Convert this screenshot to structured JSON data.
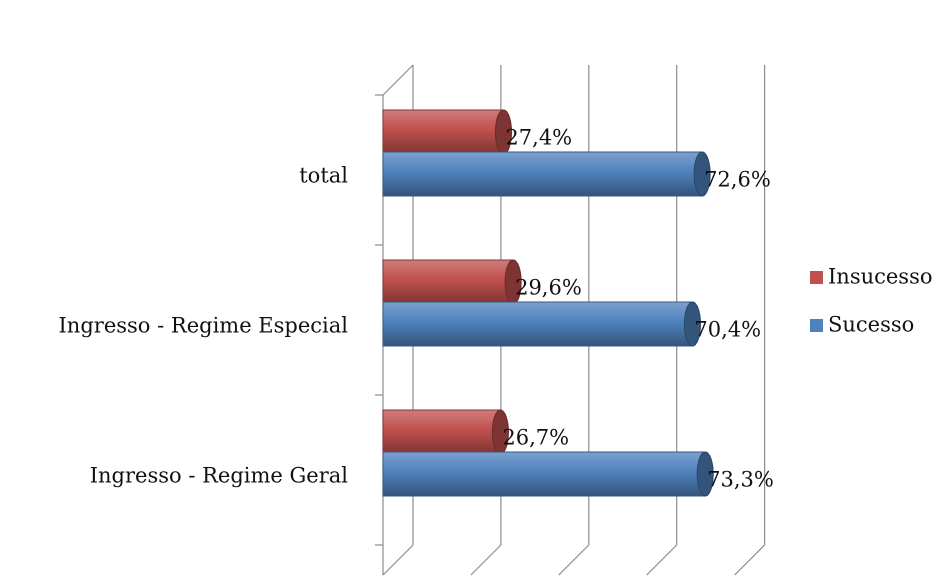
{
  "chart_data": {
    "type": "bar",
    "orientation": "horizontal",
    "style": "3d-cylinder",
    "categories": [
      "total",
      "Ingresso - Regime Especial",
      "Ingresso - Regime Geral"
    ],
    "series": [
      {
        "name": "Insucesso",
        "values": [
          27.4,
          29.6,
          26.7
        ],
        "labels": [
          "27,4%",
          "29,6%",
          "26,7%"
        ],
        "color": "#c0504d"
      },
      {
        "name": "Sucesso",
        "values": [
          72.6,
          70.4,
          73.3
        ],
        "labels": [
          "72,6%",
          "70,4%",
          "73,3%"
        ],
        "color": "#4f81bd"
      }
    ],
    "xlim": [
      0,
      80
    ],
    "grid": true,
    "legend_position": "right"
  }
}
